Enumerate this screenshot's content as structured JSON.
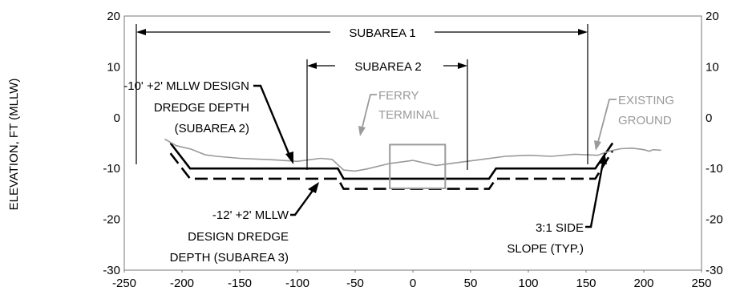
{
  "chart_data": {
    "type": "line",
    "title": "",
    "xlabel": "",
    "ylabel": "ELEVATION, FT (MLLW)",
    "xlim": [
      -250,
      250
    ],
    "ylim": [
      -30,
      20
    ],
    "x_ticks": [
      -250,
      -200,
      -150,
      -100,
      -50,
      0,
      50,
      100,
      150,
      200,
      250
    ],
    "y_ticks": [
      20,
      10,
      0,
      -10,
      -20,
      -30
    ],
    "grid": false,
    "colors": {
      "design": "#000000",
      "existing": "#9a9a9a"
    },
    "series": [
      {
        "key": "design_minus10",
        "style": "solid",
        "x": [
          -210,
          -193,
          -65,
          -60,
          66,
          72,
          158,
          173
        ],
        "y": [
          -5,
          -10,
          -10,
          -12,
          -12,
          -10,
          -10,
          -5
        ]
      },
      {
        "key": "design_minus12",
        "style": "dashed",
        "x": [
          -210,
          -193,
          -65,
          -60,
          66,
          72,
          158,
          173
        ],
        "y": [
          -7,
          -12,
          -12,
          -14,
          -14,
          -12,
          -12,
          -6.5
        ]
      },
      {
        "key": "existing_ground",
        "style": "solid-thin",
        "x": [
          -215,
          -205,
          -192,
          -180,
          -170,
          -150,
          -120,
          -100,
          -80,
          -70,
          -60,
          -50,
          -40,
          -20,
          0,
          20,
          40,
          60,
          80,
          100,
          120,
          140,
          160,
          170,
          180,
          190,
          200,
          205,
          208,
          215
        ],
        "y": [
          -4.2,
          -5.5,
          -6.2,
          -7.3,
          -7.6,
          -8.0,
          -8.3,
          -8.6,
          -8.0,
          -8.2,
          -10.3,
          -10.5,
          -10.1,
          -9.0,
          -8.4,
          -9.4,
          -8.8,
          -8.2,
          -7.6,
          -7.4,
          -7.6,
          -7.2,
          -7.4,
          -6.6,
          -6.1,
          -6.0,
          -6.3,
          -6.6,
          -6.3,
          -6.4
        ]
      }
    ],
    "terminal_box": {
      "x": [
        -20,
        28
      ],
      "y": [
        -5.3,
        -13.9
      ]
    }
  },
  "annotations": {
    "subarea1": "SUBAREA 1",
    "subarea2": "SUBAREA 2",
    "design_depth_a": [
      "-10' +2' MLLW DESIGN",
      "DREDGE DEPTH",
      "(SUBAREA 2)"
    ],
    "design_depth_b": [
      "-12' +2' MLLW",
      "DESIGN DREDGE",
      "DEPTH (SUBAREA 3)"
    ],
    "ferry_terminal": [
      "FERRY",
      "TERMINAL"
    ],
    "existing_ground": [
      "EXISTING",
      "GROUND"
    ],
    "side_slope": [
      "3:1 SIDE",
      "SLOPE (TYP.)"
    ]
  }
}
